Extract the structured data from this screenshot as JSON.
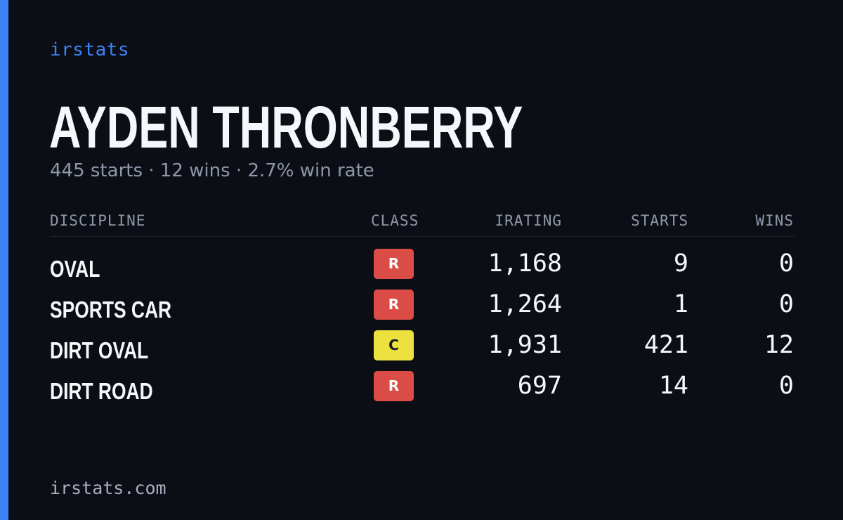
{
  "brand": "irstats",
  "driver": {
    "name": "AYDEN THRONBERRY",
    "summary": "445 starts · 12 wins · 2.7% win rate"
  },
  "table": {
    "headers": {
      "discipline": "DISCIPLINE",
      "class": "CLASS",
      "irating": "IRATING",
      "starts": "STARTS",
      "wins": "WINS"
    },
    "rows": [
      {
        "discipline": "OVAL",
        "class": "R",
        "class_color": "#dc4c46",
        "class_text_color": "#ffffff",
        "irating": "1,168",
        "starts": "9",
        "wins": "0"
      },
      {
        "discipline": "SPORTS CAR",
        "class": "R",
        "class_color": "#dc4c46",
        "class_text_color": "#ffffff",
        "irating": "1,264",
        "starts": "1",
        "wins": "0"
      },
      {
        "discipline": "DIRT OVAL",
        "class": "C",
        "class_color": "#ece13f",
        "class_text_color": "#1a1a1a",
        "irating": "1,931",
        "starts": "421",
        "wins": "12"
      },
      {
        "discipline": "DIRT ROAD",
        "class": "R",
        "class_color": "#dc4c46",
        "class_text_color": "#ffffff",
        "irating": "697",
        "starts": "14",
        "wins": "0"
      }
    ]
  },
  "footer": "irstats.com",
  "colors": {
    "background": "#0b0e15",
    "accent": "#3b82f6",
    "muted": "#8f97a8"
  }
}
